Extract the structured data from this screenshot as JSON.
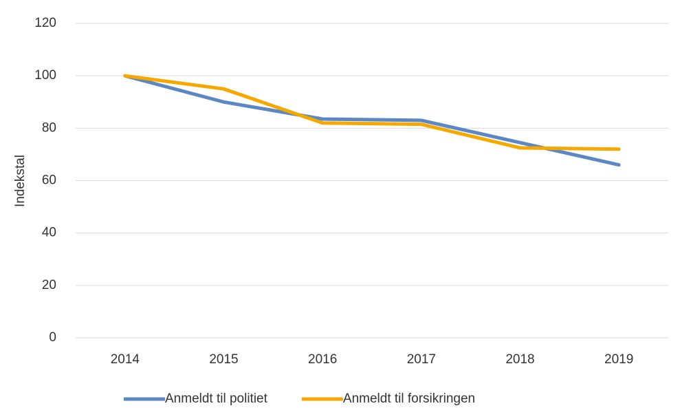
{
  "chart_data": {
    "type": "line",
    "y_label": "Indekstal",
    "categories": [
      "2014",
      "2015",
      "2016",
      "2017",
      "2018",
      "2019"
    ],
    "series": [
      {
        "name": "Anmeldt til politiet",
        "color": "#5b87c5",
        "values": [
          100,
          90,
          83.5,
          83,
          74.5,
          66
        ]
      },
      {
        "name": "Anmeldt til forsikringen",
        "color": "#f5a800",
        "values": [
          100,
          95,
          82,
          81.5,
          72.5,
          72
        ]
      }
    ],
    "ylim": [
      0,
      120
    ],
    "yticks": [
      0,
      20,
      40,
      60,
      80,
      100,
      120
    ],
    "grid": true,
    "legend": "bottom"
  }
}
